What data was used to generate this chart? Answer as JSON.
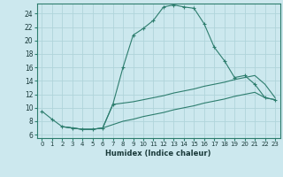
{
  "xlabel": "Humidex (Indice chaleur)",
  "bg_color": "#cce8ee",
  "grid_color": "#b0d4da",
  "line_color": "#2d7d6e",
  "xlim": [
    -0.5,
    23.5
  ],
  "ylim": [
    5.5,
    25.5
  ],
  "xticks": [
    0,
    1,
    2,
    3,
    4,
    5,
    6,
    7,
    8,
    9,
    10,
    11,
    12,
    13,
    14,
    15,
    16,
    17,
    18,
    19,
    20,
    21,
    22,
    23
  ],
  "yticks": [
    6,
    8,
    10,
    12,
    14,
    16,
    18,
    20,
    22,
    24
  ],
  "series": [
    {
      "x": [
        0,
        1,
        2,
        3,
        4,
        5,
        6,
        7,
        8,
        9,
        10,
        11,
        12,
        13,
        14,
        15,
        16,
        17,
        18,
        19,
        20,
        21,
        22,
        23
      ],
      "y": [
        9.5,
        8.3,
        7.2,
        7.0,
        6.8,
        6.8,
        7.0,
        10.5,
        16.0,
        20.8,
        21.8,
        23.0,
        25.0,
        25.3,
        25.0,
        24.8,
        22.5,
        19.0,
        17.0,
        14.5,
        14.8,
        13.5,
        11.5,
        11.2
      ],
      "marker": "+"
    },
    {
      "x": [
        2,
        3,
        4,
        5,
        6,
        7,
        8,
        9,
        10,
        11,
        12,
        13,
        14,
        15,
        16,
        17,
        18,
        19,
        20,
        21,
        22,
        23
      ],
      "y": [
        7.2,
        7.0,
        6.8,
        6.8,
        7.0,
        10.5,
        10.7,
        10.9,
        11.2,
        11.5,
        11.8,
        12.2,
        12.5,
        12.8,
        13.2,
        13.5,
        13.8,
        14.2,
        14.5,
        14.8,
        13.5,
        11.5
      ],
      "marker": null
    },
    {
      "x": [
        2,
        3,
        4,
        5,
        6,
        7,
        8,
        9,
        10,
        11,
        12,
        13,
        14,
        15,
        16,
        17,
        18,
        19,
        20,
        21,
        22,
        23
      ],
      "y": [
        7.2,
        7.0,
        6.8,
        6.8,
        7.0,
        7.5,
        8.0,
        8.3,
        8.7,
        9.0,
        9.3,
        9.7,
        10.0,
        10.3,
        10.7,
        11.0,
        11.3,
        11.7,
        12.0,
        12.3,
        11.5,
        11.2
      ],
      "marker": null
    }
  ]
}
